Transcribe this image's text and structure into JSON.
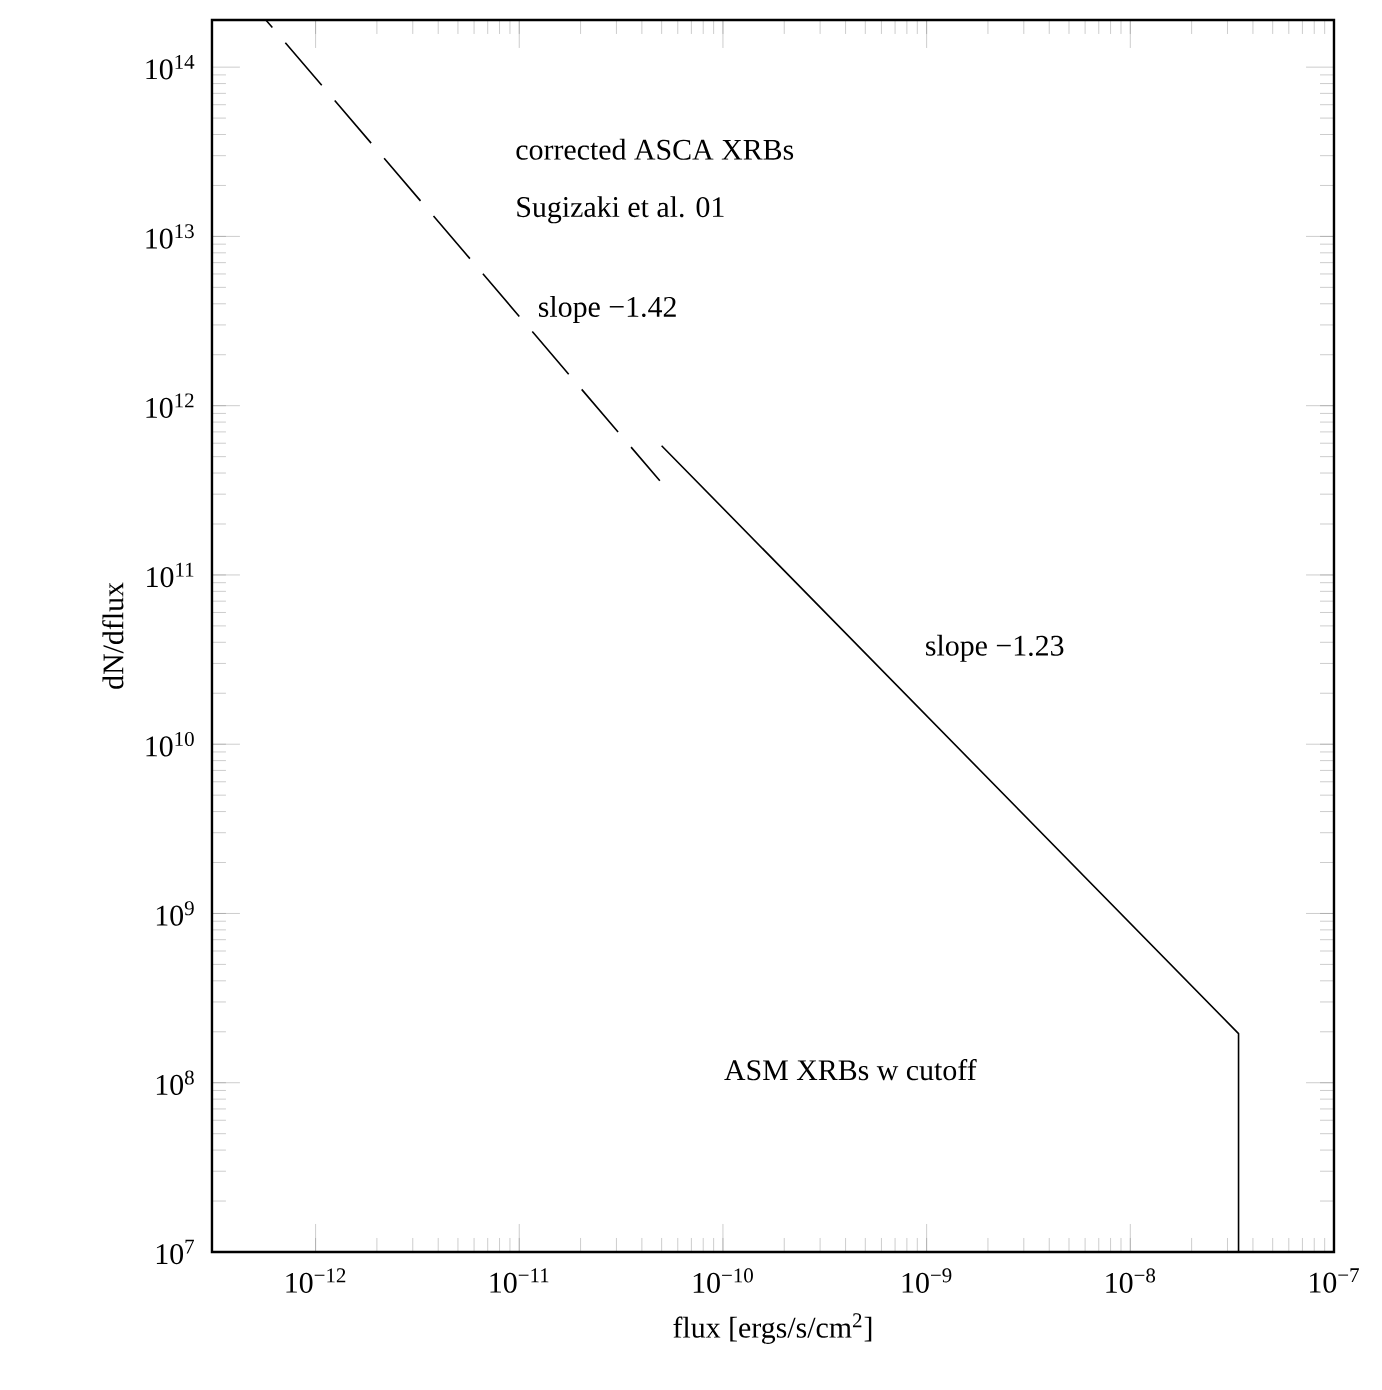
{
  "chart_data": {
    "type": "line",
    "xlabel": "flux [ergs/s/cm$^{2}$]",
    "ylabel": "dN/dflux",
    "log": "xy",
    "xlim": [
      3.1e-13,
      1e-07
    ],
    "ylim": [
      10000000.0,
      190000000000000.0
    ],
    "xticks": [
      {
        "value": 1e-12,
        "label": "10$^{−12}$"
      },
      {
        "value": 1e-11,
        "label": "10$^{−11}$"
      },
      {
        "value": 1e-10,
        "label": "10$^{−10}$"
      },
      {
        "value": 1e-09,
        "label": "10$^{−9}$"
      },
      {
        "value": 1e-08,
        "label": "10$^{−8}$"
      },
      {
        "value": 1e-07,
        "label": "10$^{−7}$"
      }
    ],
    "yticks": [
      {
        "value": 10000000.0,
        "label": "10$^{7}$"
      },
      {
        "value": 100000000.0,
        "label": "10$^{8}$"
      },
      {
        "value": 1000000000.0,
        "label": "10$^{9}$"
      },
      {
        "value": 10000000000.0,
        "label": "10$^{10}$"
      },
      {
        "value": 100000000000.0,
        "label": "10$^{11}$"
      },
      {
        "value": 1000000000000.0,
        "label": "10$^{12}$"
      },
      {
        "value": 10000000000000.0,
        "label": "10$^{13}$"
      },
      {
        "value": 100000000000000.0,
        "label": "10$^{14}$"
      }
    ],
    "series": [
      {
        "color": "#000000",
        "line_style": "dashed",
        "x": [
          5.7e-13,
          4.9e-11
        ],
        "values": [
          190000000000000.0,
          360000000000.0
        ]
      },
      {
        "color": "#000000",
        "line_style": "solid",
        "x": [
          5e-11,
          3.4e-08,
          3.4e-08
        ],
        "values": [
          580000000000.0,
          195000000.0,
          10000000.0
        ]
      }
    ],
    "annotations": [
      "corrected ASCA XRBs",
      "Sugizaki et al. 01",
      "slope −1.42",
      "slope −1.23",
      "ASM XRBs w cutoff"
    ]
  }
}
